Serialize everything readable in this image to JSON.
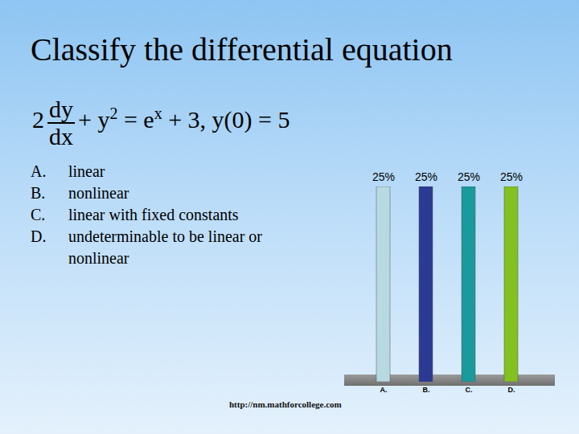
{
  "title": "Classify the differential equation",
  "equation": [
    {
      "text": "2"
    },
    {
      "frac": [
        "dy",
        "dx"
      ]
    },
    {
      "text": "+ y"
    },
    {
      "sup": "2"
    },
    {
      "text": " = e"
    },
    {
      "sup": "x"
    },
    {
      "text": " + 3, y(0) = 5"
    }
  ],
  "options": [
    {
      "letter": "A.",
      "text": "linear"
    },
    {
      "letter": "B.",
      "text": "nonlinear"
    },
    {
      "letter": "C.",
      "text": "linear with fixed constants"
    },
    {
      "letter": "D.",
      "text": "undeterminable to be linear or nonlinear"
    }
  ],
  "footer": "http://nm.mathforcollege.com",
  "chart_data": {
    "type": "bar",
    "categories": [
      "A.",
      "B.",
      "C.",
      "D."
    ],
    "values": [
      25,
      25,
      25,
      25
    ],
    "value_labels": [
      "25%",
      "25%",
      "25%",
      "25%"
    ],
    "data_labels": true,
    "colors": [
      "#b7d9e2",
      "#2b3a93",
      "#1a9a9c",
      "#82c11f"
    ],
    "ylim": [
      0,
      25
    ],
    "yticks": [],
    "tick_labels": "x"
  }
}
